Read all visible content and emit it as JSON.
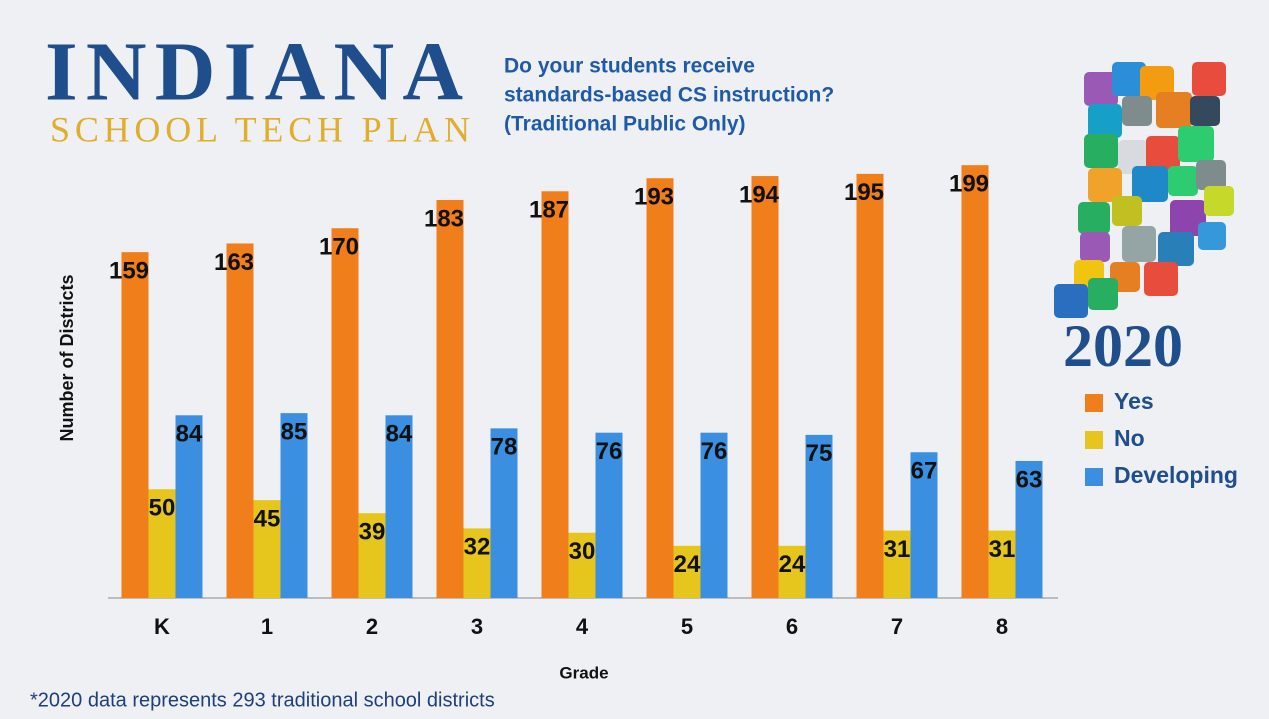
{
  "header": {
    "logo_title": "INDIANA",
    "logo_subtitle": "SCHOOL TECH PLAN"
  },
  "chart_data": {
    "type": "bar",
    "title": [
      "Do your students receive",
      "standards-based CS instruction?",
      "(Traditional Public Only)"
    ],
    "x_label": "Grade",
    "y_label": "Number of Districts",
    "categories": [
      "K",
      "1",
      "2",
      "3",
      "4",
      "5",
      "6",
      "7",
      "8"
    ],
    "series": [
      {
        "name": "Yes",
        "color": "#f07e1b",
        "values": [
          159,
          163,
          170,
          183,
          187,
          193,
          194,
          195,
          199
        ]
      },
      {
        "name": "No",
        "color": "#e6c51c",
        "values": [
          50,
          45,
          39,
          32,
          30,
          24,
          24,
          31,
          31
        ]
      },
      {
        "name": "Developing",
        "color": "#3b8fe0",
        "values": [
          84,
          85,
          84,
          78,
          76,
          76,
          75,
          67,
          63
        ]
      }
    ],
    "ylim": [
      0,
      200
    ],
    "grid": false,
    "legend_position": "right",
    "legend_title": "2020",
    "footnote": "*2020 data represents 293 traditional school districts"
  }
}
